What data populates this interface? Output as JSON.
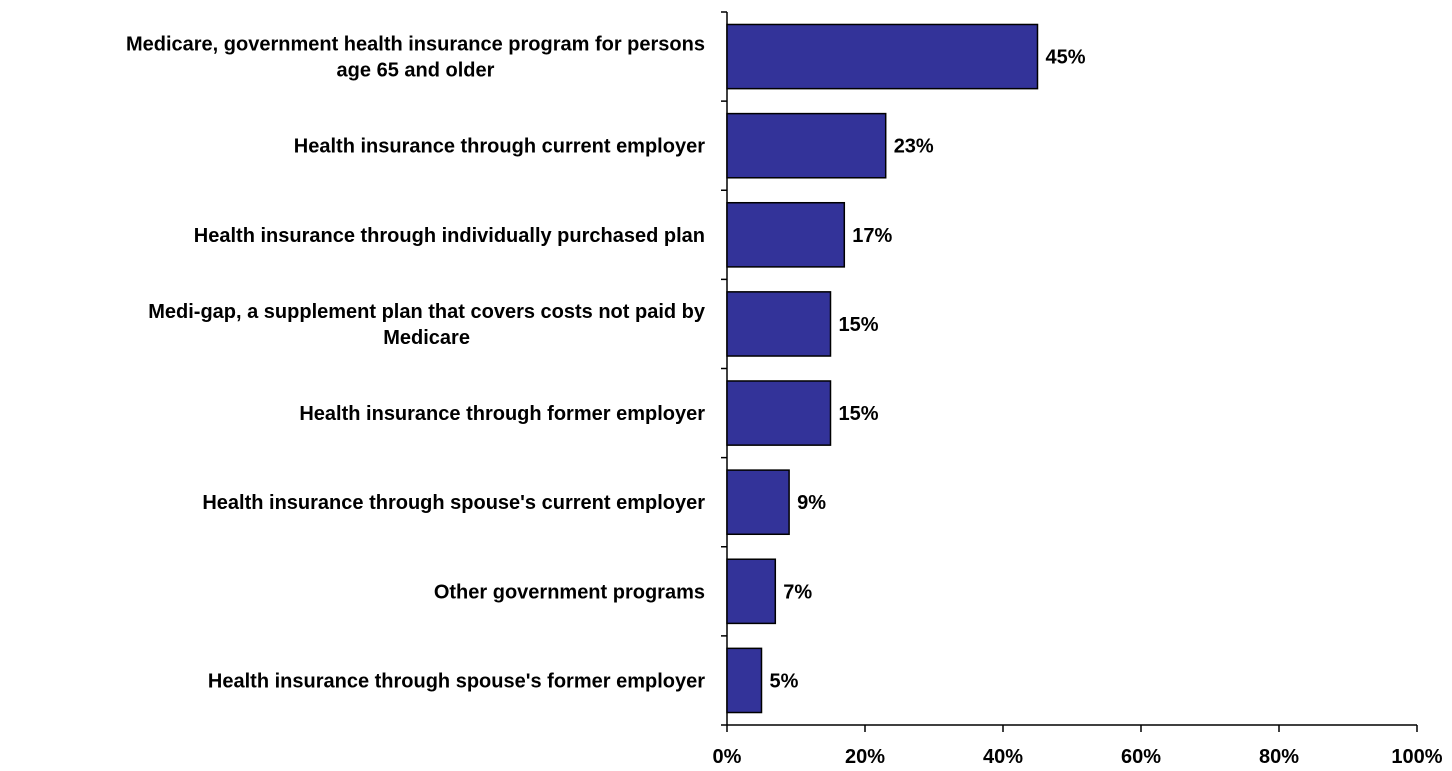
{
  "chart_data": {
    "type": "bar",
    "orientation": "horizontal",
    "title": "",
    "xlabel": "",
    "ylabel": "",
    "categories": [
      [
        "Medicare, government health insurance program for persons",
        "age 65 and older"
      ],
      [
        "Health insurance through current employer"
      ],
      [
        "Health insurance through individually purchased plan"
      ],
      [
        "Medi-gap, a supplement plan that covers costs not paid by",
        "Medicare"
      ],
      [
        "Health insurance through former employer"
      ],
      [
        "Health insurance through spouse's current employer"
      ],
      [
        "Other government programs"
      ],
      [
        "Health insurance through spouse's former employer"
      ]
    ],
    "values": [
      45,
      23,
      17,
      15,
      15,
      9,
      7,
      5
    ],
    "value_labels": [
      "45%",
      "23%",
      "17%",
      "15%",
      "15%",
      "9%",
      "7%",
      "5%"
    ],
    "xlim": [
      0,
      100
    ],
    "xticks": [
      0,
      20,
      40,
      60,
      80,
      100
    ],
    "xtick_labels": [
      "0%",
      "20%",
      "40%",
      "60%",
      "80%",
      "100%"
    ],
    "bar_color": "#333399",
    "bar_edge_color": "#000000",
    "grid": false,
    "legend": "none"
  }
}
